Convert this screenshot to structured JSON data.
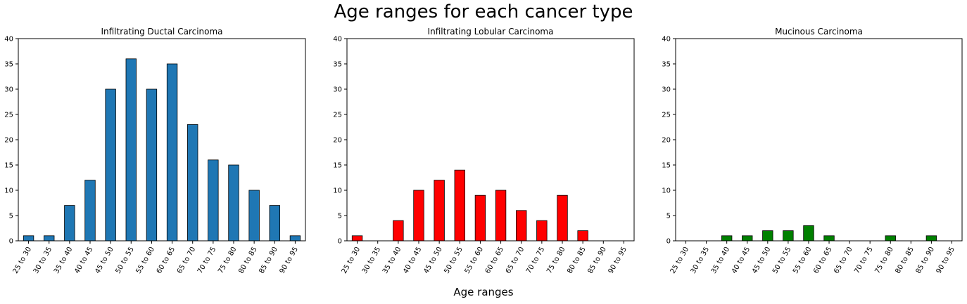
{
  "figure": {
    "suptitle": "Age ranges for each cancer type",
    "xlabel": "Age ranges"
  },
  "chart_data": [
    {
      "type": "bar",
      "title": "Infiltrating Ductal Carcinoma",
      "categories": [
        "25 to 30",
        "30 to 35",
        "35 to 40",
        "40 to 45",
        "45 to 50",
        "50 to 55",
        "55 to 60",
        "60 to 65",
        "65 to 70",
        "70 to 75",
        "75 to 80",
        "80 to 85",
        "85 to 90",
        "90 to 95"
      ],
      "values": [
        1,
        1,
        7,
        12,
        30,
        36,
        30,
        35,
        23,
        16,
        15,
        10,
        7,
        1
      ],
      "color": "#1f77b4",
      "ylim": [
        0,
        40
      ],
      "yticks": [
        0,
        5,
        10,
        15,
        20,
        25,
        30,
        35,
        40
      ],
      "grid": false
    },
    {
      "type": "bar",
      "title": "Infiltrating Lobular Carcinoma",
      "categories": [
        "25 to 30",
        "30 to 35",
        "35 to 40",
        "40 to 45",
        "45 to 50",
        "50 to 55",
        "55 to 60",
        "60 to 65",
        "65 to 70",
        "70 to 75",
        "75 to 80",
        "80 to 85",
        "85 to 90",
        "90 to 95"
      ],
      "values": [
        1,
        0,
        4,
        10,
        12,
        14,
        9,
        10,
        6,
        4,
        9,
        2,
        0,
        0
      ],
      "color": "#ff0000",
      "ylim": [
        0,
        40
      ],
      "yticks": [
        0,
        5,
        10,
        15,
        20,
        25,
        30,
        35,
        40
      ],
      "grid": false
    },
    {
      "type": "bar",
      "title": "Mucinous Carcinoma",
      "categories": [
        "25 to 30",
        "30 to 35",
        "35 to 40",
        "40 to 45",
        "45 to 50",
        "50 to 55",
        "55 to 60",
        "60 to 65",
        "65 to 70",
        "70 to 75",
        "75 to 80",
        "80 to 85",
        "85 to 90",
        "90 to 95"
      ],
      "values": [
        0,
        0,
        1,
        1,
        2,
        2,
        3,
        1,
        0,
        0,
        1,
        0,
        1,
        0
      ],
      "color": "#008000",
      "ylim": [
        0,
        40
      ],
      "yticks": [
        0,
        5,
        10,
        15,
        20,
        25,
        30,
        35,
        40
      ],
      "grid": false
    }
  ]
}
